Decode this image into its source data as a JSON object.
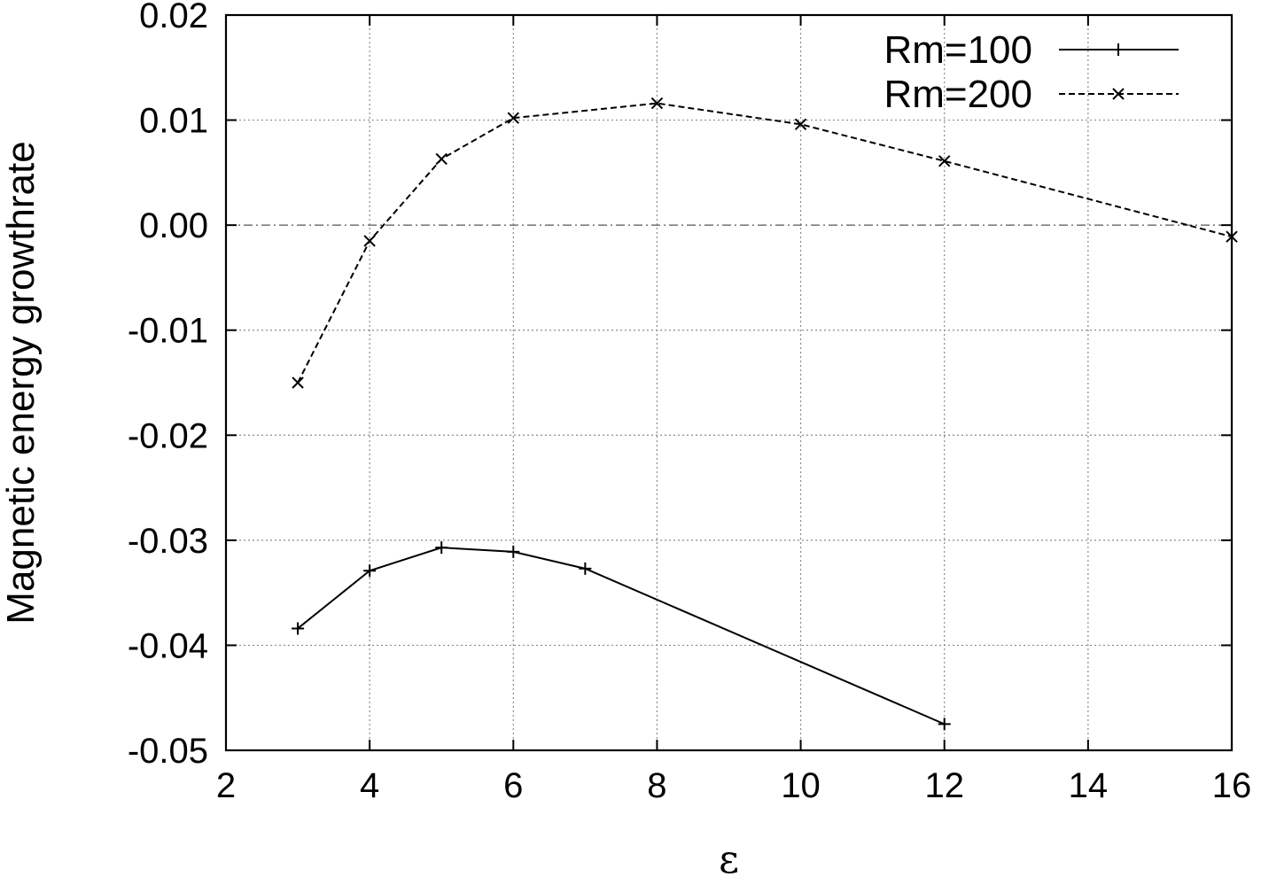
{
  "chart_data": {
    "type": "line",
    "title": "",
    "xlabel": "ε",
    "ylabel": "Magnetic energy growthrate",
    "xlim": [
      2,
      16
    ],
    "ylim": [
      -0.05,
      0.02
    ],
    "xticks": [
      2,
      4,
      6,
      8,
      10,
      12,
      14,
      16
    ],
    "xtick_labels": [
      "2",
      "4",
      "6",
      "8",
      "10",
      "12",
      "14",
      "16"
    ],
    "yticks": [
      -0.05,
      -0.04,
      -0.03,
      -0.02,
      -0.01,
      0.0,
      0.01,
      0.02
    ],
    "ytick_labels": [
      "-0.05",
      "-0.04",
      "-0.03",
      "-0.02",
      "-0.01",
      "0.00",
      "0.01",
      "0.02"
    ],
    "grid": true,
    "legend_position": "top-right",
    "series": [
      {
        "name": "Rm=100",
        "line_style": "solid",
        "marker": "plus",
        "x": [
          3,
          4,
          5,
          6,
          7,
          12
        ],
        "y": [
          -0.0384,
          -0.0329,
          -0.0307,
          -0.0311,
          -0.0327,
          -0.0475
        ]
      },
      {
        "name": "Rm=200",
        "line_style": "dashed",
        "marker": "cross",
        "x": [
          3,
          4,
          5,
          6,
          8,
          10,
          12,
          16
        ],
        "y": [
          -0.015,
          -0.0015,
          0.0063,
          0.0102,
          0.0116,
          0.0096,
          0.0061,
          -0.0011
        ]
      }
    ]
  }
}
